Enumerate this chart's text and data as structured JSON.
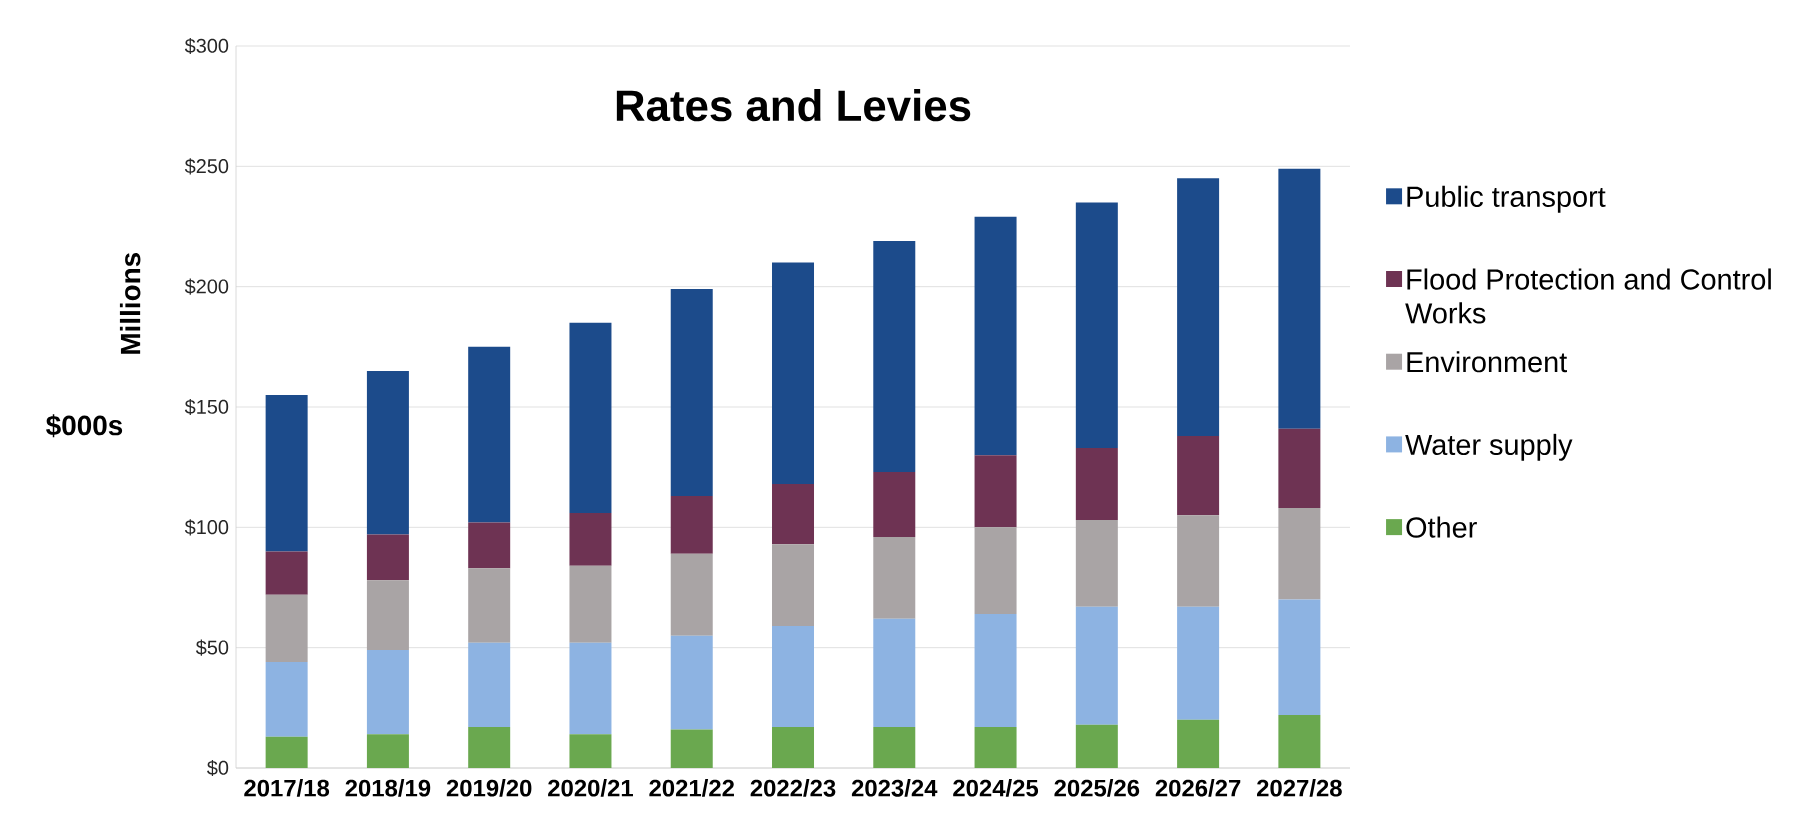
{
  "chart_data": {
    "type": "bar",
    "stacked": true,
    "title": "Rates and Levies",
    "ylabel": "Millions",
    "annotations": [
      "$000s"
    ],
    "categories": [
      "2017/18",
      "2018/19",
      "2019/20",
      "2020/21",
      "2021/22",
      "2022/23",
      "2023/24",
      "2024/25",
      "2025/26",
      "2026/27",
      "2027/28"
    ],
    "series": [
      {
        "name": "Other",
        "color": "#6aa84f",
        "values": [
          13,
          14,
          17,
          14,
          16,
          17,
          17,
          17,
          18,
          20,
          22
        ]
      },
      {
        "name": "Water supply",
        "color": "#8db3e2",
        "values": [
          31,
          35,
          35,
          38,
          39,
          42,
          45,
          47,
          49,
          47,
          48
        ]
      },
      {
        "name": "Environment",
        "color": "#a9a4a5",
        "values": [
          28,
          29,
          31,
          32,
          34,
          34,
          34,
          36,
          36,
          38,
          38
        ]
      },
      {
        "name": "Flood Protection and Control Works",
        "color": "#6e3353",
        "values": [
          18,
          19,
          19,
          22,
          24,
          25,
          27,
          30,
          30,
          33,
          33
        ]
      },
      {
        "name": "Public transport",
        "color": "#1c4b8b",
        "values": [
          65,
          68,
          73,
          79,
          86,
          92,
          96,
          99,
          102,
          107,
          108
        ]
      }
    ],
    "ylim": [
      0,
      300
    ],
    "yticks": [
      {
        "value": 0,
        "label": "$0"
      },
      {
        "value": 50,
        "label": "$50"
      },
      {
        "value": 100,
        "label": "$100"
      },
      {
        "value": 150,
        "label": "$150"
      },
      {
        "value": 200,
        "label": "$200"
      },
      {
        "value": 250,
        "label": "$250"
      },
      {
        "value": 300,
        "label": "$300"
      }
    ],
    "grid": "y",
    "legend": "right"
  }
}
